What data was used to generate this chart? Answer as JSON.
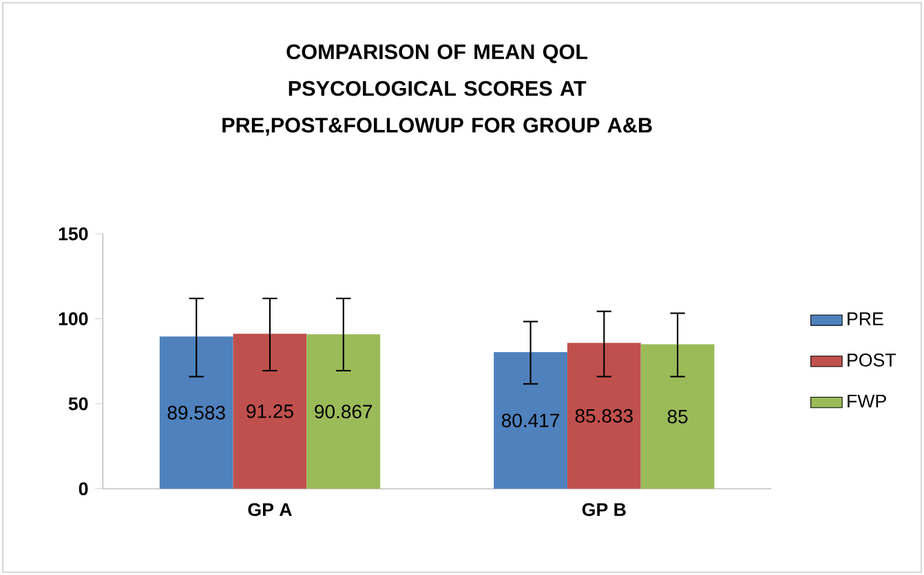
{
  "chart_data": {
    "type": "bar",
    "title": "COMPARISON OF MEAN QOL PSYCOLOGICAL SCORES AT PRE,POST&FOLLOWUP  FOR GROUP A&B",
    "categories": [
      "GP A",
      "GP B"
    ],
    "series": [
      {
        "name": "PRE",
        "color": "#4f81bd",
        "values": [
          89.583,
          80.417
        ],
        "errors": [
          [
            66,
            112
          ],
          [
            61.7,
            98.4
          ]
        ]
      },
      {
        "name": "POST",
        "color": "#c0504d",
        "values": [
          91.25,
          85.833
        ],
        "errors": [
          [
            69.5,
            112
          ],
          [
            66,
            104.4
          ]
        ]
      },
      {
        "name": "FWP",
        "color": "#9bbb59",
        "values": [
          90.867,
          85
        ],
        "errors": [
          [
            69.5,
            112
          ],
          [
            66,
            103.3
          ]
        ]
      }
    ],
    "ylim": [
      0,
      150
    ],
    "yticks": [
      0,
      50,
      100,
      150
    ],
    "data_labels": true,
    "legend": "right",
    "grid": false
  }
}
